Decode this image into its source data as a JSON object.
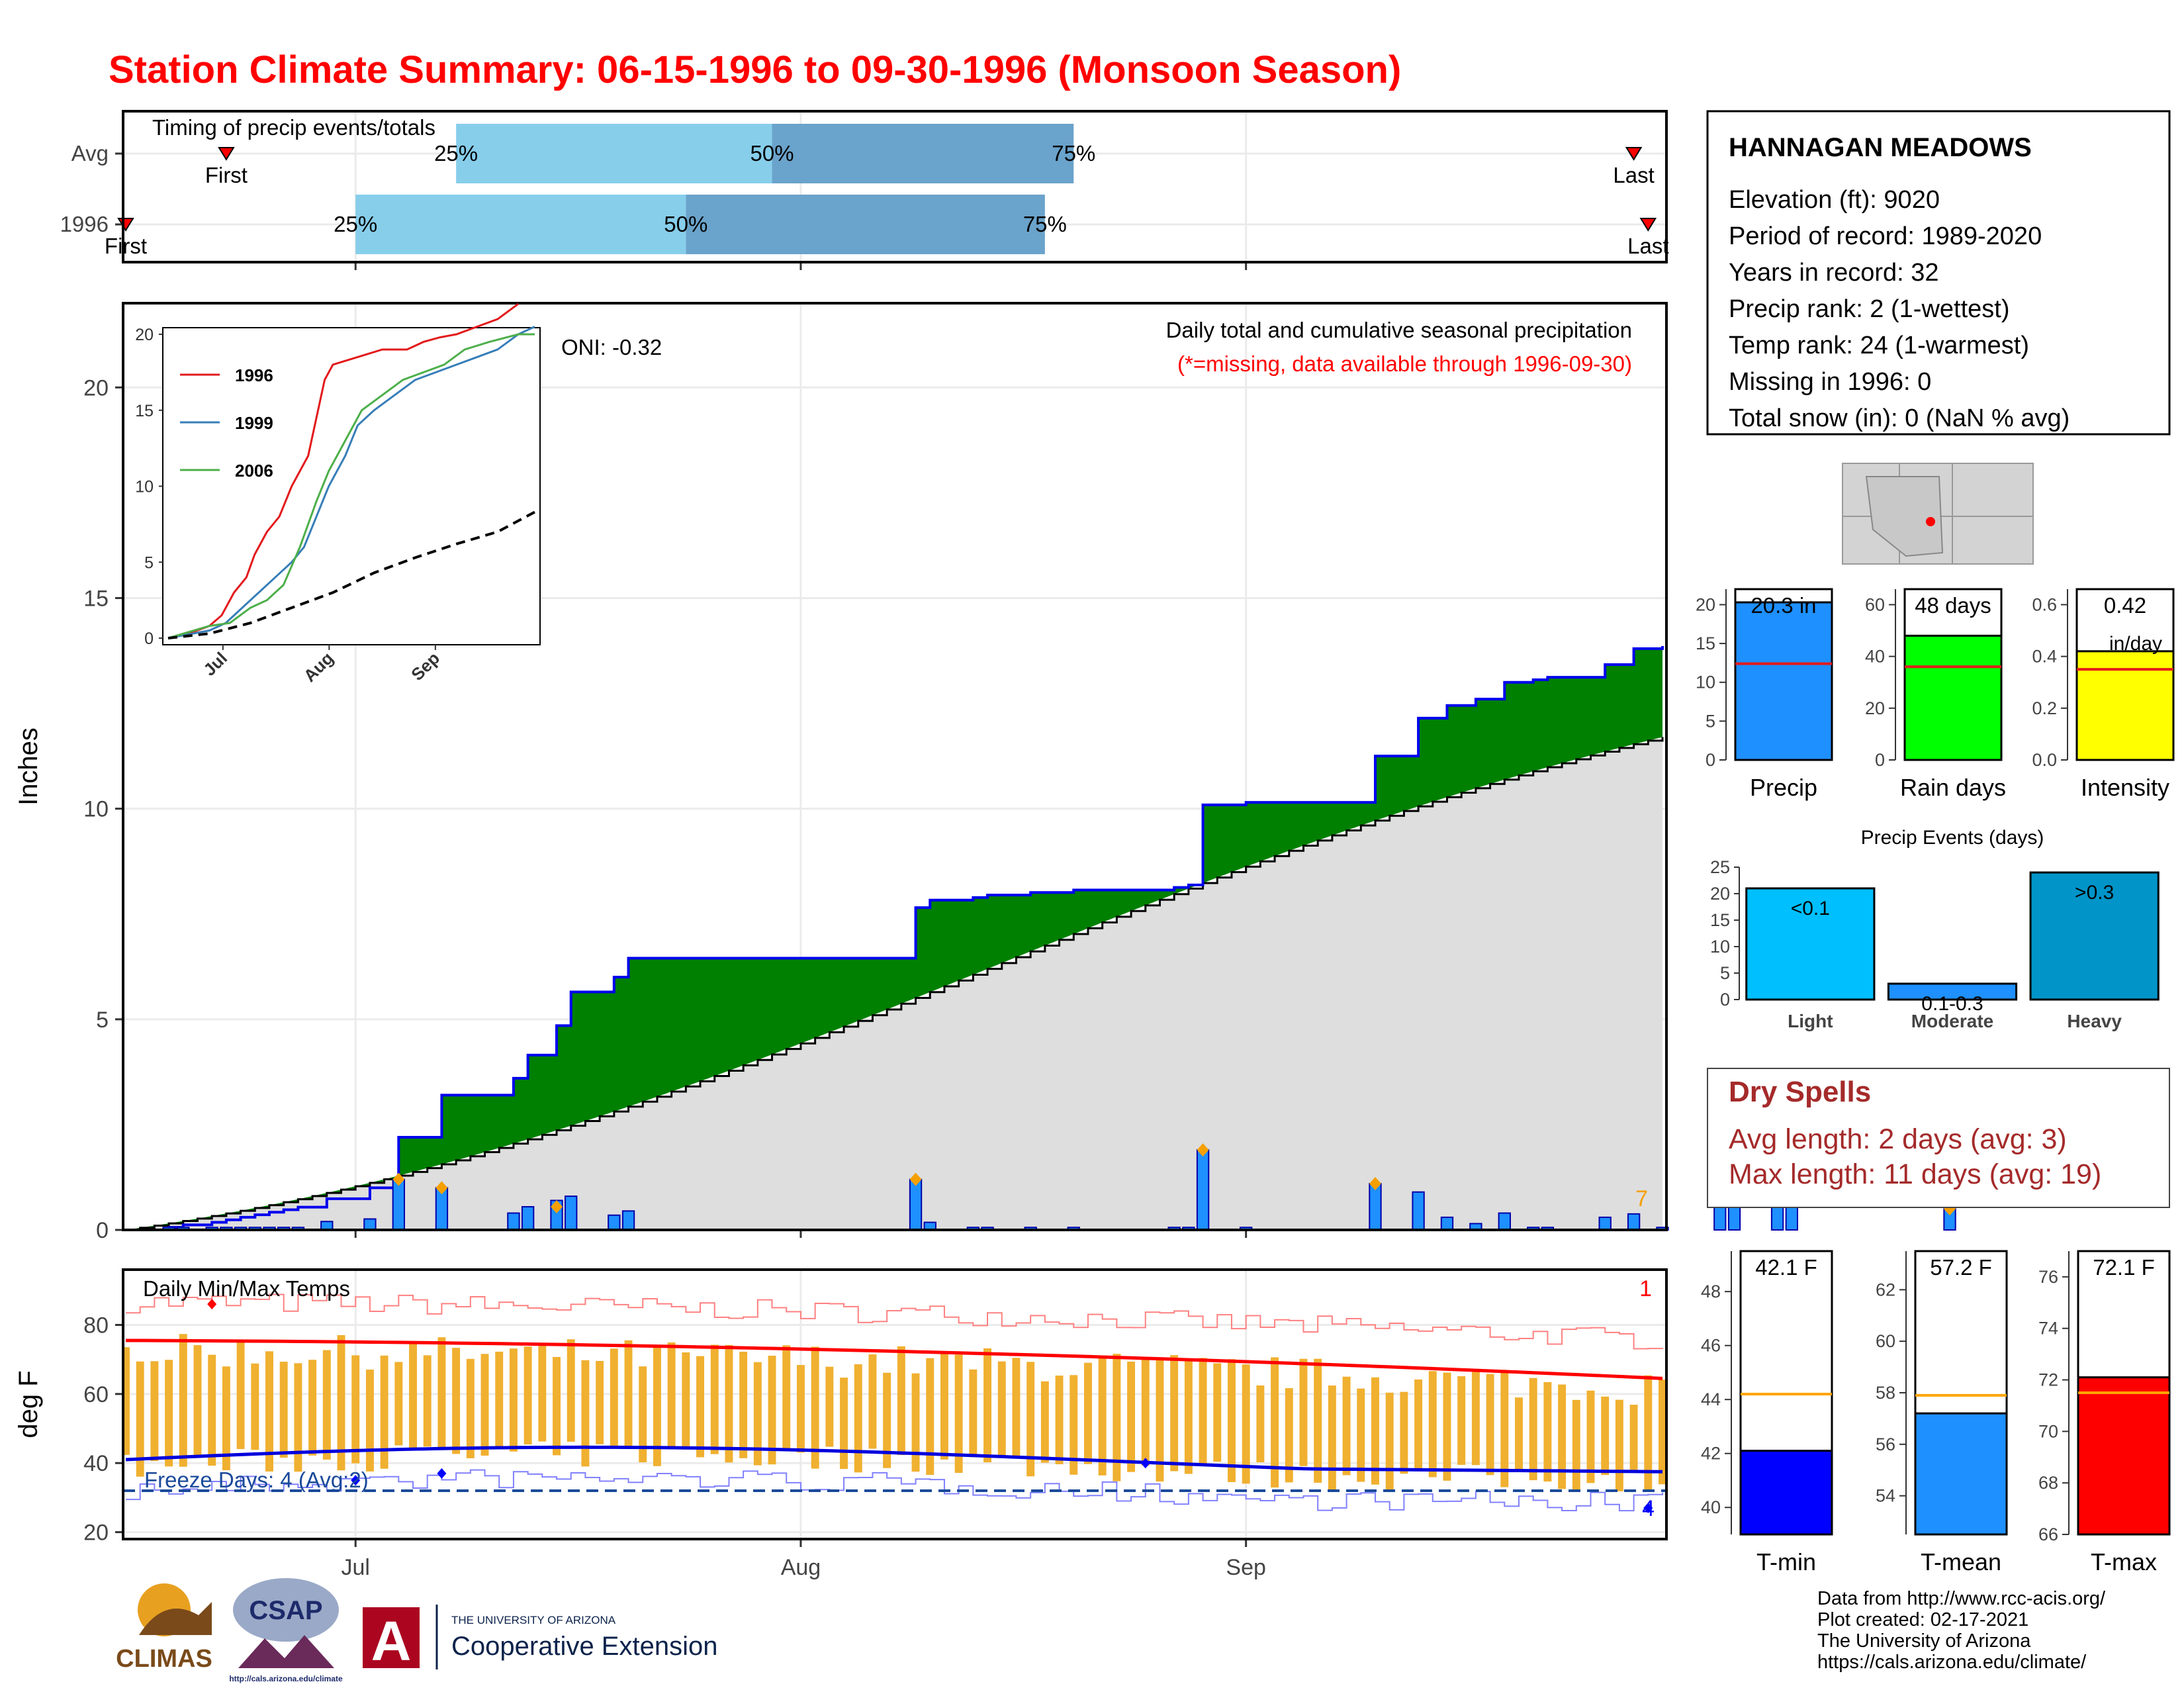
{
  "title": "Station Climate Summary: 06-15-1996 to 09-30-1996 (Monsoon Season)",
  "colors": {
    "title": "#ff0000",
    "green_area": "#008000",
    "normal_area": "#dedede",
    "light_blue": "#87ceeb",
    "mid_blue": "#6aa3cb",
    "precip_bar": "#1e90ff",
    "dry_spell": "#a52a2a",
    "temp_bar": "#f0b030",
    "tmax_line": "#ff0000",
    "tmin_line": "#0000dd"
  },
  "station": {
    "name": "HANNAGAN MEADOWS",
    "lines": [
      "Elevation (ft): 9020",
      "Period of record: 1989-2020",
      "Years in record: 32",
      "Precip rank: 2 (1-wettest)",
      "Temp rank: 24 (1-warmest)",
      "Missing in 1996: 0",
      "Total snow (in): 0 (NaN % avg)"
    ]
  },
  "dry_spells": {
    "title": "Dry Spells",
    "avg": "Avg length: 2 days (avg: 3)",
    "max": "Max length: 11 days (avg: 19)"
  },
  "footer": {
    "lines": [
      "Data from http://www.rcc-acis.org/",
      "Plot created: 02-17-2021",
      "The University of Arizona",
      "https://cals.arizona.edu/climate/"
    ],
    "climas": "CLIMAS",
    "csap": "CSAP",
    "csap_url": "http://cals.arizona.edu/climate",
    "ua_small": "THE UNIVERSITY OF ARIZONA",
    "ua_big": "Cooperative Extension",
    "ua_letter": "A"
  },
  "chart_data": [
    {
      "id": "timing",
      "type": "bar",
      "title": "Timing of precip events/totals",
      "rows": [
        {
          "label": "Avg",
          "first": "Jun 22",
          "p25": "Jul 8",
          "p50": "Jul 30",
          "p75": "Aug 20",
          "last": "Sep 28"
        },
        {
          "label": "1996",
          "first": "Jun 15",
          "p25": "Jul 1",
          "p50": "Jul 24",
          "p75": "Aug 18",
          "last": "Sep 29"
        }
      ],
      "marker_labels": {
        "first": "First",
        "last": "Last",
        "p25": "25%",
        "p50": "50%",
        "p75": "75%"
      }
    },
    {
      "id": "cumulative",
      "type": "area",
      "title": "Daily total and cumulative seasonal precipitation",
      "subtitle": "(*=missing, data available through 1996-09-30)",
      "oni": "ONI: -0.32",
      "ylabel": "Inches",
      "ylim": [
        0,
        22
      ],
      "yticks": [
        0,
        5,
        10,
        15,
        20
      ],
      "x_ticks": [
        "Jul",
        "Aug",
        "Sep"
      ],
      "corner_count": "7",
      "daily_precip": [
        [
          3,
          0.06
        ],
        [
          4,
          0.06
        ],
        [
          6,
          0.06
        ],
        [
          7,
          0.06
        ],
        [
          8,
          0.06
        ],
        [
          9,
          0.06
        ],
        [
          10,
          0.06
        ],
        [
          11,
          0.06
        ],
        [
          12,
          0.06
        ],
        [
          14,
          0.2
        ],
        [
          17,
          0.26
        ],
        [
          19,
          1.2
        ],
        [
          22,
          1.0
        ],
        [
          27,
          0.4
        ],
        [
          28,
          0.55
        ],
        [
          30,
          0.7
        ],
        [
          31,
          0.8
        ],
        [
          34,
          0.35
        ],
        [
          35,
          0.45
        ],
        [
          55,
          1.2
        ],
        [
          56,
          0.18
        ],
        [
          59,
          0.06
        ],
        [
          60,
          0.06
        ],
        [
          63,
          0.06
        ],
        [
          66,
          0.06
        ],
        [
          73,
          0.06
        ],
        [
          74,
          0.06
        ],
        [
          75,
          1.9
        ],
        [
          78,
          0.06
        ],
        [
          87,
          1.1
        ],
        [
          90,
          0.9
        ],
        [
          92,
          0.3
        ],
        [
          94,
          0.15
        ],
        [
          96,
          0.4
        ],
        [
          98,
          0.06
        ],
        [
          99,
          0.06
        ],
        [
          103,
          0.3
        ],
        [
          105,
          0.38
        ],
        [
          107,
          0.06
        ],
        [
          111,
          1.1
        ],
        [
          112,
          0.7
        ],
        [
          115,
          0.6
        ],
        [
          116,
          0.65
        ],
        [
          127,
          0.5
        ]
      ],
      "orange_markers": [
        [
          19,
          1.2
        ],
        [
          22,
          1.0
        ],
        [
          30,
          0.55
        ],
        [
          55,
          1.2
        ],
        [
          75,
          1.9
        ],
        [
          87,
          1.1
        ],
        [
          127,
          0.5
        ]
      ],
      "normal_cumulative_at_end": 11.7
    },
    {
      "id": "inset",
      "type": "line",
      "ylim": [
        0,
        20
      ],
      "yticks": [
        0,
        5,
        10,
        15,
        20
      ],
      "x_ticks": [
        "Jul",
        "Aug",
        "Sep"
      ],
      "series": [
        {
          "name": "1996",
          "color": "#e31a1c",
          "points": [
            [
              0,
              0
            ],
            [
              5,
              0.3
            ],
            [
              10,
              0.8
            ],
            [
              13,
              1.5
            ],
            [
              16,
              3
            ],
            [
              19,
              4
            ],
            [
              21,
              5.5
            ],
            [
              24,
              7
            ],
            [
              27,
              8
            ],
            [
              30,
              10
            ],
            [
              34,
              12
            ],
            [
              38,
              17
            ],
            [
              40,
              18
            ],
            [
              46,
              18.5
            ],
            [
              52,
              19
            ],
            [
              58,
              19
            ],
            [
              62,
              19.5
            ],
            [
              66,
              19.8
            ],
            [
              70,
              20
            ],
            [
              75,
              20.5
            ],
            [
              80,
              21
            ],
            [
              85,
              22
            ]
          ]
        },
        {
          "name": "1999",
          "color": "#377eb8",
          "points": [
            [
              0,
              0
            ],
            [
              10,
              0.5
            ],
            [
              14,
              1
            ],
            [
              18,
              2
            ],
            [
              22,
              3
            ],
            [
              26,
              4
            ],
            [
              30,
              5
            ],
            [
              33,
              6
            ],
            [
              36,
              8
            ],
            [
              39,
              10
            ],
            [
              43,
              12
            ],
            [
              46,
              14
            ],
            [
              50,
              15
            ],
            [
              55,
              16
            ],
            [
              60,
              17
            ],
            [
              65,
              17.5
            ],
            [
              70,
              18
            ],
            [
              75,
              18.5
            ],
            [
              80,
              19
            ],
            [
              85,
              20
            ],
            [
              89,
              20.5
            ]
          ]
        },
        {
          "name": "2006",
          "color": "#4daf4a",
          "points": [
            [
              0,
              0
            ],
            [
              10,
              0.8
            ],
            [
              15,
              1
            ],
            [
              20,
              2
            ],
            [
              24,
              2.5
            ],
            [
              28,
              3.5
            ],
            [
              32,
              6
            ],
            [
              36,
              9
            ],
            [
              39,
              11
            ],
            [
              43,
              13
            ],
            [
              47,
              15
            ],
            [
              52,
              16
            ],
            [
              57,
              17
            ],
            [
              62,
              17.5
            ],
            [
              67,
              18
            ],
            [
              72,
              19
            ],
            [
              78,
              19.5
            ],
            [
              85,
              20
            ],
            [
              89,
              20
            ]
          ]
        },
        {
          "name": "avg",
          "color": "#000000",
          "dashed": true,
          "points": [
            [
              0,
              0
            ],
            [
              10,
              0.3
            ],
            [
              20,
              1
            ],
            [
              30,
              2
            ],
            [
              40,
              3
            ],
            [
              50,
              4.3
            ],
            [
              60,
              5.3
            ],
            [
              70,
              6.2
            ],
            [
              80,
              7
            ],
            [
              89,
              8.3
            ]
          ]
        }
      ]
    },
    {
      "id": "temps",
      "type": "bar",
      "title": "Daily Min/Max Temps",
      "ylabel": "deg F",
      "ylim": [
        18,
        96
      ],
      "yticks": [
        20,
        40,
        60,
        80
      ],
      "x_ticks": [
        "Jul",
        "Aug",
        "Sep"
      ],
      "freeze_label": "Freeze Days: 4 (Avg:2)",
      "freeze_line": 32,
      "corner_top": "1",
      "corner_bottom": "4"
    },
    {
      "id": "summary_bars",
      "type": "bar",
      "panels": [
        {
          "label": "Precip",
          "value_label": "20.3 in",
          "value": 20.3,
          "avg": 12.4,
          "ylim": [
            0,
            22
          ],
          "yticks": [
            0,
            5,
            10,
            15,
            20
          ],
          "color": "#1e90ff"
        },
        {
          "label": "Rain days",
          "value_label": "48 days",
          "value": 48,
          "avg": 36,
          "ylim": [
            0,
            66
          ],
          "yticks": [
            0,
            20,
            40,
            60
          ],
          "color": "#00ff00"
        },
        {
          "label": "Intensity",
          "value_label": "0.42",
          "unit": "in/day",
          "value": 0.42,
          "avg": 0.35,
          "ylim": [
            0,
            0.66
          ],
          "yticks": [
            "0.0",
            "0.2",
            "0.4",
            "0.6"
          ],
          "color": "#ffff00"
        }
      ]
    },
    {
      "id": "precip_events",
      "type": "bar",
      "title": "Precip Events (days)",
      "categories": [
        "Light",
        "Moderate",
        "Heavy"
      ],
      "values": [
        21,
        3,
        24
      ],
      "bar_labels": [
        "<0.1",
        "0.1-0.3",
        ">0.3"
      ],
      "ylim": [
        0,
        25
      ],
      "yticks": [
        0,
        5,
        10,
        15,
        20,
        25
      ],
      "colors": [
        "#00bfff",
        "#1e90ff",
        "#0094c8"
      ]
    },
    {
      "id": "temp_bars",
      "type": "bar",
      "panels": [
        {
          "label": "T-min",
          "value_label": "42.1 F",
          "value": 42.1,
          "avg": 44.2,
          "ylim": [
            39,
            49.5
          ],
          "yticks": [
            40,
            42,
            44,
            46,
            48
          ],
          "color": "#0000ff"
        },
        {
          "label": "T-mean",
          "value_label": "57.2 F",
          "value": 57.2,
          "avg": 57.9,
          "ylim": [
            52.5,
            63.5
          ],
          "yticks": [
            54,
            56,
            58,
            60,
            62
          ],
          "color": "#1e90ff"
        },
        {
          "label": "T-max",
          "value_label": "72.1 F",
          "value": 72.1,
          "avg": 71.5,
          "ylim": [
            66,
            77
          ],
          "yticks": [
            66,
            68,
            70,
            72,
            74,
            76
          ],
          "color": "#ff0000"
        }
      ]
    }
  ]
}
